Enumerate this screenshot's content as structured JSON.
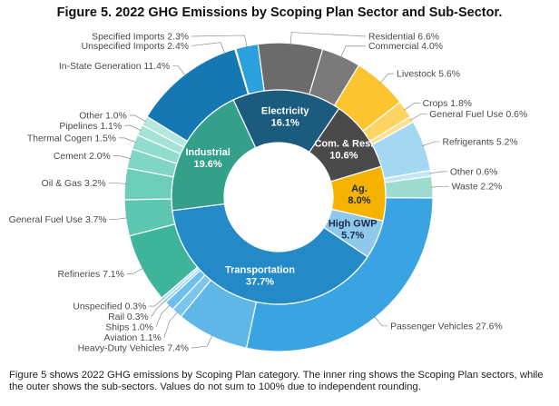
{
  "title": "Figure 5. 2022 GHG Emissions by Scoping Plan Sector and Sub-Sector.",
  "caption": "Figure 5 shows 2022 GHG emissions by Scoping Plan category. The inner ring shows the Scoping Plan sectors, while the outer shows the sub-sectors. Values do not sum to 100% due to independent rounding.",
  "chart_data": {
    "type": "pie",
    "title": "Figure 5. 2022 GHG Emissions by Scoping Plan Sector and Sub-Sector.",
    "unit": "%",
    "inner_ring": [
      {
        "name": "Electricity",
        "value": 16.1,
        "label": "16.1%",
        "color": "#1b5b7e",
        "text_color": "#ffffff"
      },
      {
        "name": "Com. & Res.",
        "value": 10.6,
        "label": "10.6%",
        "color": "#4a4a4a",
        "text_color": "#ffffff"
      },
      {
        "name": "Ag.",
        "value": 8.0,
        "label": "8.0%",
        "color": "#f5b300",
        "text_color": "#1b2a4a"
      },
      {
        "name": "High GWP",
        "value": 5.7,
        "label": "5.7%",
        "color": "#8ec9ec",
        "text_color": "#1b2a4a"
      },
      {
        "name": "Transportation",
        "value": 37.7,
        "label": "37.7%",
        "color": "#238ac7",
        "text_color": "#ffffff"
      },
      {
        "name": "Industrial",
        "value": 19.6,
        "label": "19.6%",
        "color": "#35a08a",
        "text_color": "#ffffff"
      }
    ],
    "outer_ring": [
      {
        "name": "Unspecified Imports",
        "value": 2.4,
        "label": "Unspecified Imports 2.4%",
        "color": "#1f84bf"
      },
      {
        "name": "Specified Imports",
        "value": 2.3,
        "label": "Specified Imports 2.3%",
        "color": "#2aa0dd"
      },
      {
        "name": "Residential",
        "value": 6.6,
        "label": "Residential 6.6%",
        "color": "#6b6b6b"
      },
      {
        "name": "Commercial",
        "value": 4.0,
        "label": "Commercial 4.0%",
        "color": "#7a7a7a"
      },
      {
        "name": "Livestock",
        "value": 5.6,
        "label": "Livestock 5.6%",
        "color": "#fcc52f"
      },
      {
        "name": "Crops",
        "value": 1.8,
        "label": "Crops 1.8%",
        "color": "#fdd461"
      },
      {
        "name": "General Fuel Use",
        "value": 0.6,
        "label": "General Fuel Use 0.6%",
        "color": "#fde090"
      },
      {
        "name": "Refrigerants",
        "value": 5.2,
        "label": "Refrigerants 5.2%",
        "color": "#a3d7f2"
      },
      {
        "name": "Other",
        "value": 0.6,
        "label": "Other 0.6%",
        "color": "#c3e6f7"
      },
      {
        "name": "Waste",
        "value": 2.2,
        "label": "Waste 2.2%",
        "color": "#9fdcd0"
      },
      {
        "name": "Passenger Vehicles",
        "value": 27.6,
        "label": "Passenger Vehicles 27.6%",
        "color": "#3aa3e2"
      },
      {
        "name": "Heavy-Duty Vehicles",
        "value": 7.4,
        "label": "Heavy-Duty Vehicles 7.4%",
        "color": "#5fb7e8"
      },
      {
        "name": "Aviation",
        "value": 1.1,
        "label": "Aviation 1.1%",
        "color": "#7cc5ee"
      },
      {
        "name": "Ships",
        "value": 1.0,
        "label": "Ships 1.0%",
        "color": "#6fbfec"
      },
      {
        "name": "Rail",
        "value": 0.3,
        "label": "Rail 0.3%",
        "color": "#92d0f2"
      },
      {
        "name": "Unspecified",
        "value": 0.3,
        "label": "Unspecified 0.3%",
        "color": "#a8daf5"
      },
      {
        "name": "Refineries",
        "value": 7.1,
        "label": "Refineries 7.1%",
        "color": "#3eb49b"
      },
      {
        "name": "General Fuel Use",
        "value": 3.7,
        "label": "General Fuel Use 3.7%",
        "color": "#5cc6b1"
      },
      {
        "name": "Oil & Gas",
        "value": 3.2,
        "label": "Oil & Gas 3.2%",
        "color": "#6ccdb9"
      },
      {
        "name": "Cement",
        "value": 2.0,
        "label": "Cement 2.0%",
        "color": "#80d5c4"
      },
      {
        "name": "Thermal Cogen",
        "value": 1.5,
        "label": "Thermal Cogen 1.5%",
        "color": "#92dccd"
      },
      {
        "name": "Pipelines",
        "value": 1.1,
        "label": "Pipelines 1.1%",
        "color": "#a4e2d6"
      },
      {
        "name": "Other",
        "value": 1.0,
        "label": "Other 1.0%",
        "color": "#b5e8df"
      },
      {
        "name": "In-State Generation",
        "value": 11.4,
        "label": "In-State Generation 11.4%",
        "color": "#1678b3"
      }
    ]
  }
}
